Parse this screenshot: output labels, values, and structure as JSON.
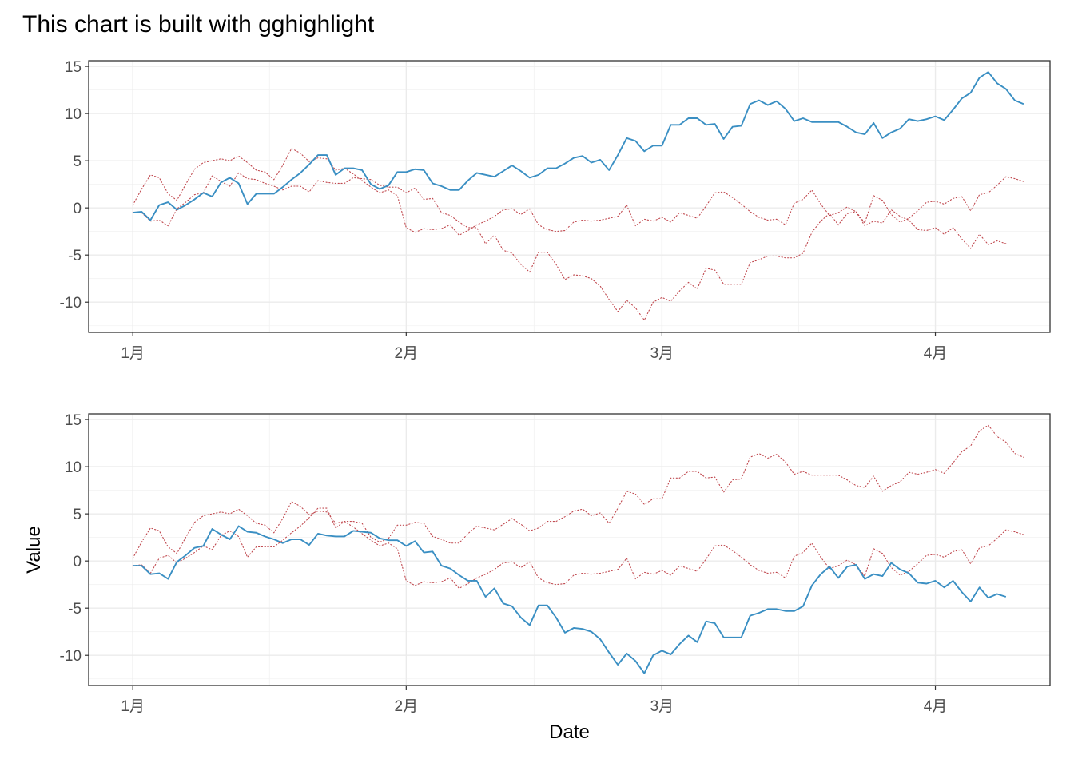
{
  "chart_data": {
    "type": "line",
    "title": "This chart is built with gghighlight",
    "xlabel": "Date",
    "ylabel": "Value",
    "x_start": "2020-01-01",
    "x_step": "1 day",
    "xlim": [
      "2019-12-27",
      "2020-04-14"
    ],
    "ylim": [
      -13.2,
      15.6
    ],
    "x_ticks": [
      {
        "date": "2020-01-01",
        "label": "1月"
      },
      {
        "date": "2020-02-01",
        "label": "2月"
      },
      {
        "date": "2020-03-01",
        "label": "3月"
      },
      {
        "date": "2020-04-01",
        "label": "4月"
      }
    ],
    "y_ticks": [
      15,
      10,
      5,
      0,
      -5,
      -10
    ],
    "grid": true,
    "highlight_color": "#3a8fc3",
    "background_color": "#c0494f",
    "series": [
      {
        "values": [
          -0.5,
          -0.4,
          -1.3,
          0.3,
          0.6,
          -0.2,
          0.3,
          0.9,
          1.6,
          1.2,
          2.7,
          3.2,
          2.6,
          0.4,
          1.5,
          1.5,
          1.5,
          2.2,
          3.0,
          3.7,
          4.6,
          5.6,
          5.6,
          3.5,
          4.2,
          4.2,
          4.0,
          2.5,
          2.0,
          2.4,
          3.8,
          3.8,
          4.1,
          4.0,
          2.6,
          2.3,
          1.9,
          1.9,
          2.9,
          3.7,
          3.5,
          3.3,
          3.9,
          4.5,
          3.9,
          3.2,
          3.5,
          4.2,
          4.2,
          4.7,
          5.3,
          5.5,
          4.8,
          5.1,
          4.0,
          5.6,
          7.4,
          7.1,
          6.0,
          6.6,
          6.6,
          8.8,
          8.8,
          9.5,
          9.5,
          8.8,
          8.9,
          7.3,
          8.6,
          8.7,
          11.0,
          11.4,
          10.9,
          11.3,
          10.5,
          9.2,
          9.5,
          9.1,
          9.1,
          9.1,
          9.1,
          8.6,
          8.0,
          7.8,
          9.0,
          7.4,
          8.0,
          8.4,
          9.4,
          9.2,
          9.4,
          9.7,
          9.3,
          10.4,
          11.6,
          12.2,
          13.8,
          14.4,
          13.2,
          12.6,
          11.4,
          11.0
        ]
      },
      {
        "values": [
          -0.5,
          -0.5,
          -1.4,
          -1.3,
          -1.9,
          -0.1,
          0.6,
          1.4,
          1.6,
          3.4,
          2.8,
          2.3,
          3.7,
          3.1,
          3.0,
          2.6,
          2.3,
          1.9,
          2.3,
          2.3,
          1.7,
          2.9,
          2.7,
          2.6,
          2.6,
          3.2,
          3.1,
          3.0,
          2.4,
          2.2,
          2.2,
          1.6,
          2.1,
          0.9,
          1.0,
          -0.5,
          -0.8,
          -1.5,
          -2.1,
          -2.1,
          -3.8,
          -2.9,
          -4.5,
          -4.8,
          -6.0,
          -6.8,
          -4.7,
          -4.7,
          -6.0,
          -7.6,
          -7.1,
          -7.2,
          -7.5,
          -8.3,
          -9.7,
          -11.0,
          -9.8,
          -10.6,
          -11.9,
          -10.0,
          -9.5,
          -9.9,
          -8.8,
          -7.9,
          -8.6,
          -6.4,
          -6.6,
          -8.1,
          -8.1,
          -8.1,
          -5.8,
          -5.5,
          -5.1,
          -5.1,
          -5.3,
          -5.3,
          -4.8,
          -2.6,
          -1.4,
          -0.6,
          -1.8,
          -0.6,
          -0.4,
          -1.9,
          -1.4,
          -1.6,
          -0.2,
          -0.9,
          -1.3,
          -2.3,
          -2.4,
          -2.1,
          -2.8,
          -2.1,
          -3.3,
          -4.3,
          -2.8,
          -3.9,
          -3.5,
          -3.8
        ]
      },
      {
        "values": [
          0.3,
          2.0,
          3.5,
          3.2,
          1.5,
          0.8,
          2.5,
          4.1,
          4.8,
          5.0,
          5.2,
          5.0,
          5.5,
          4.8,
          4.0,
          3.8,
          3.0,
          4.5,
          6.3,
          5.8,
          4.9,
          5.3,
          5.2,
          4.0,
          4.2,
          3.6,
          2.9,
          2.2,
          1.6,
          1.9,
          1.3,
          -2.1,
          -2.6,
          -2.2,
          -2.3,
          -2.2,
          -1.8,
          -2.9,
          -2.4,
          -1.8,
          -1.4,
          -0.9,
          -0.2,
          -0.1,
          -0.7,
          -0.1,
          -1.8,
          -2.3,
          -2.5,
          -2.4,
          -1.5,
          -1.3,
          -1.4,
          -1.3,
          -1.1,
          -0.9,
          0.3,
          -1.9,
          -1.2,
          -1.4,
          -1.0,
          -1.5,
          -0.5,
          -0.8,
          -1.1,
          0.2,
          1.6,
          1.7,
          1.1,
          0.4,
          -0.4,
          -1.0,
          -1.3,
          -1.2,
          -1.8,
          0.5,
          0.9,
          1.9,
          0.4,
          -0.8,
          -0.5,
          0.1,
          -0.4,
          -1.6,
          1.3,
          0.8,
          -0.7,
          -1.5,
          -1.1,
          -0.3,
          0.6,
          0.7,
          0.4,
          1.0,
          1.2,
          -0.3,
          1.4,
          1.6,
          2.4,
          3.3,
          3.1,
          2.8
        ]
      }
    ],
    "panels": [
      {
        "highlight": 0,
        "show_ylabel": false,
        "show_xlabel": false,
        "show_title": true
      },
      {
        "highlight": 1,
        "show_ylabel": true,
        "show_xlabel": true,
        "show_title": false
      }
    ]
  }
}
